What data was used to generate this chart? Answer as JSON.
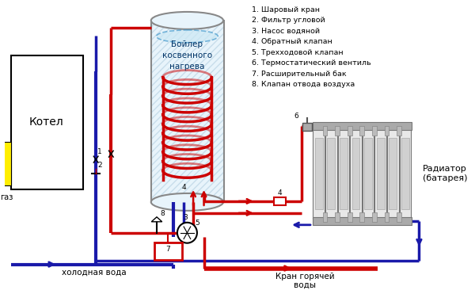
{
  "bg_color": "#ffffff",
  "red": "#cc0000",
  "blue": "#1a1aaa",
  "gray": "#888888",
  "yellow": "#ffee00",
  "legend_items": [
    "1. Шаровый кран",
    "2. Фильтр угловой",
    "3. Насос водяной",
    "4. Обратный клапан",
    "5. Трехходовой клапан",
    "6. Термостатический вентиль",
    "7. Расширительный бак",
    "8. Клапан отвода воздуха"
  ],
  "label_kotel": "Котел",
  "label_boiler": "Бойлер\nкосвенного\nнагрева",
  "label_gaz": "газ",
  "label_cold": "холодная вода",
  "label_hot": "Кран горячей\nводы",
  "label_radiator": "Радиатор\n(батарея)"
}
